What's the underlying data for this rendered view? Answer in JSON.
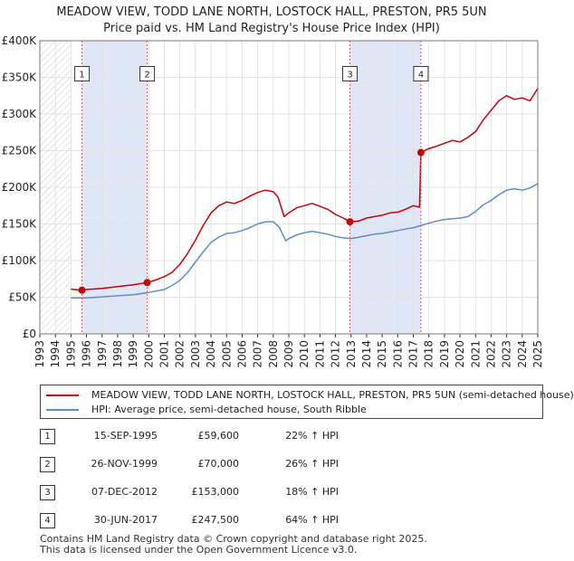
{
  "title": {
    "line1": "MEADOW VIEW, TODD LANE NORTH, LOSTOCK HALL, PRESTON, PR5 5UN",
    "line2": "Price paid vs. HM Land Registry's House Price Index (HPI)"
  },
  "colors": {
    "property": "#cc0000",
    "hpi": "#5b8ccc",
    "shade": "#dfe6f5",
    "hatch": "#c8c8c8",
    "grid": "#e2e2e2",
    "vline": "#e06060"
  },
  "chart_data": {
    "type": "line",
    "title": "Price paid vs. HM Land Registry's House Price Index (HPI)",
    "xlabel": "",
    "ylabel": "",
    "xlim": [
      1993,
      2025
    ],
    "ylim": [
      0,
      400000
    ],
    "yticks": [
      {
        "value": 0,
        "label": "£0"
      },
      {
        "value": 50000,
        "label": "£50K"
      },
      {
        "value": 100000,
        "label": "£100K"
      },
      {
        "value": 150000,
        "label": "£150K"
      },
      {
        "value": 200000,
        "label": "£200K"
      },
      {
        "value": 250000,
        "label": "£250K"
      },
      {
        "value": 300000,
        "label": "£300K"
      },
      {
        "value": 350000,
        "label": "£350K"
      },
      {
        "value": 400000,
        "label": "£400K"
      }
    ],
    "xticks": [
      "1993",
      "1994",
      "1995",
      "1996",
      "1997",
      "1998",
      "1999",
      "2000",
      "2001",
      "2002",
      "2003",
      "2004",
      "2005",
      "2006",
      "2007",
      "2008",
      "2009",
      "2010",
      "2011",
      "2012",
      "2013",
      "2014",
      "2015",
      "2016",
      "2017",
      "2018",
      "2019",
      "2020",
      "2021",
      "2022",
      "2023",
      "2024",
      "2025"
    ],
    "hatched_ranges": [
      [
        1993,
        1995.0
      ],
      [
        2025.0,
        2025.5
      ]
    ],
    "shaded_ranges": [
      [
        1995.71,
        1999.9
      ],
      [
        2012.93,
        2017.49
      ]
    ],
    "series": [
      {
        "name": "MEADOW VIEW, TODD LANE NORTH, LOSTOCK HALL, PRESTON, PR5 5UN (semi-detached house)",
        "color": "#cc0000",
        "x": [
          1995.0,
          1995.71,
          1996.0,
          1997.0,
          1998.0,
          1999.0,
          1999.9,
          2000.5,
          2001.0,
          2001.5,
          2002.0,
          2002.5,
          2003.0,
          2003.5,
          2004.0,
          2004.5,
          2005.0,
          2005.5,
          2006.0,
          2006.5,
          2007.0,
          2007.5,
          2008.0,
          2008.3,
          2008.7,
          2009.0,
          2009.5,
          2010.0,
          2010.5,
          2011.0,
          2011.5,
          2012.0,
          2012.5,
          2012.93,
          2013.5,
          2014.0,
          2014.5,
          2015.0,
          2015.5,
          2016.0,
          2016.5,
          2017.0,
          2017.4,
          2017.49,
          2018.0,
          2018.5,
          2019.0,
          2019.5,
          2020.0,
          2020.5,
          2021.0,
          2021.5,
          2022.0,
          2022.5,
          2023.0,
          2023.5,
          2024.0,
          2024.5,
          2025.0
        ],
        "values": [
          61000,
          59600,
          60500,
          62000,
          64500,
          67000,
          70000,
          74000,
          78000,
          84000,
          95000,
          110000,
          128000,
          148000,
          165000,
          175000,
          180000,
          178000,
          182000,
          188000,
          193000,
          196000,
          194000,
          187000,
          160000,
          165000,
          172000,
          175000,
          178000,
          174000,
          170000,
          163000,
          158000,
          153000,
          154000,
          158000,
          160000,
          162000,
          165000,
          166000,
          170000,
          175000,
          173000,
          247500,
          253000,
          256000,
          260000,
          264000,
          262000,
          268000,
          276000,
          292000,
          305000,
          318000,
          325000,
          320000,
          322000,
          318000,
          335000
        ]
      },
      {
        "name": "HPI: Average price, semi-detached house, South Ribble",
        "color": "#5b8ccc",
        "x": [
          1995.0,
          1996.0,
          1997.0,
          1998.0,
          1999.0,
          2000.0,
          2001.0,
          2001.5,
          2002.0,
          2002.5,
          2003.0,
          2003.5,
          2004.0,
          2004.5,
          2005.0,
          2005.5,
          2006.0,
          2006.5,
          2007.0,
          2007.5,
          2008.0,
          2008.4,
          2008.8,
          2009.0,
          2009.5,
          2010.0,
          2010.5,
          2011.0,
          2011.5,
          2012.0,
          2012.5,
          2013.0,
          2013.5,
          2014.0,
          2014.5,
          2015.0,
          2015.5,
          2016.0,
          2016.5,
          2017.0,
          2017.5,
          2018.0,
          2018.5,
          2019.0,
          2019.5,
          2020.0,
          2020.5,
          2021.0,
          2021.5,
          2022.0,
          2022.5,
          2023.0,
          2023.5,
          2024.0,
          2024.5,
          2025.0
        ],
        "values": [
          49000,
          49000,
          50500,
          52000,
          53500,
          56500,
          60500,
          66000,
          73000,
          84000,
          98000,
          112000,
          125000,
          132000,
          137000,
          138000,
          141000,
          145000,
          150000,
          153000,
          153000,
          145000,
          127000,
          130000,
          135000,
          138000,
          140000,
          138000,
          136000,
          133000,
          131000,
          130000,
          132000,
          134000,
          136000,
          137000,
          139000,
          141000,
          143000,
          145000,
          148000,
          151000,
          154000,
          156000,
          157000,
          158000,
          160000,
          167000,
          176000,
          182000,
          190000,
          196000,
          198000,
          196000,
          199000,
          205000
        ]
      }
    ],
    "sales": [
      {
        "n": "1",
        "x": 1995.71,
        "value": 59600
      },
      {
        "n": "2",
        "x": 1999.9,
        "value": 70000
      },
      {
        "n": "3",
        "x": 2012.93,
        "value": 153000
      },
      {
        "n": "4",
        "x": 2017.49,
        "value": 247500
      }
    ],
    "marker_y_value": 355000
  },
  "legend": {
    "property": "MEADOW VIEW, TODD LANE NORTH, LOSTOCK HALL, PRESTON, PR5 5UN (semi-detached house)",
    "hpi": "HPI: Average price, semi-detached house, South Ribble"
  },
  "transactions": [
    {
      "n": "1",
      "date": "15-SEP-1995",
      "price": "£59,600",
      "hpi": "22% ↑ HPI"
    },
    {
      "n": "2",
      "date": "26-NOV-1999",
      "price": "£70,000",
      "hpi": "26% ↑ HPI"
    },
    {
      "n": "3",
      "date": "07-DEC-2012",
      "price": "£153,000",
      "hpi": "18% ↑ HPI"
    },
    {
      "n": "4",
      "date": "30-JUN-2017",
      "price": "£247,500",
      "hpi": "64% ↑ HPI"
    }
  ],
  "footer": {
    "line1": "Contains HM Land Registry data © Crown copyright and database right 2025.",
    "line2": "This data is licensed under the Open Government Licence v3.0."
  }
}
